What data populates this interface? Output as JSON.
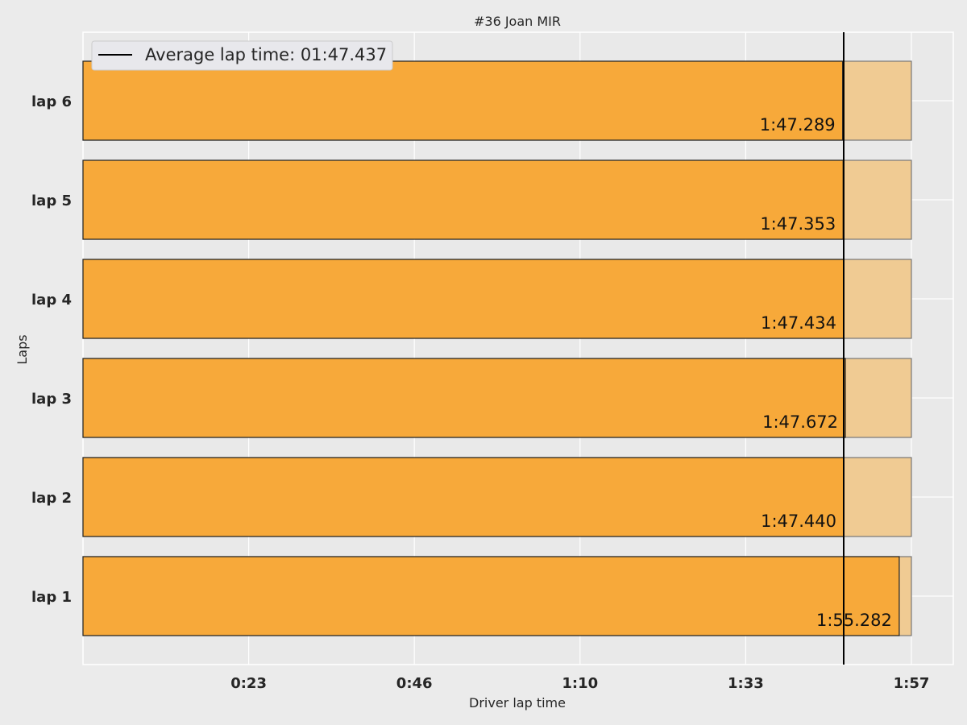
{
  "chart_data": {
    "type": "bar",
    "orientation": "horizontal",
    "title": "#36  Joan MIR",
    "xlabel": "Driver lap time",
    "ylabel": "Laps",
    "categories": [
      "lap 1",
      "lap 2",
      "lap 3",
      "lap 4",
      "lap 5",
      "lap 6"
    ],
    "values": [
      115.282,
      107.44,
      107.672,
      107.434,
      107.353,
      107.289
    ],
    "value_labels": [
      "1:55.282",
      "1:47.440",
      "1:47.672",
      "1:47.434",
      "1:47.353",
      "1:47.289"
    ],
    "max_bar_value": 117.0,
    "xlim": [
      0,
      117.0
    ],
    "xticks": [
      23.4,
      46.8,
      70.2,
      93.6,
      117.0
    ],
    "xtick_labels": [
      "0:23",
      "0:46",
      "1:10",
      "1:33",
      "1:57"
    ],
    "average": {
      "value": 107.437,
      "label": "Average lap time: 01:47.437"
    },
    "legend_position": "top-left",
    "grid": true,
    "colors": {
      "bar": "#f7a93a",
      "bar_bg": "#f0cb93",
      "background": "#ebebeb",
      "grid": "#ffffff",
      "avg_line": "#000000"
    }
  }
}
